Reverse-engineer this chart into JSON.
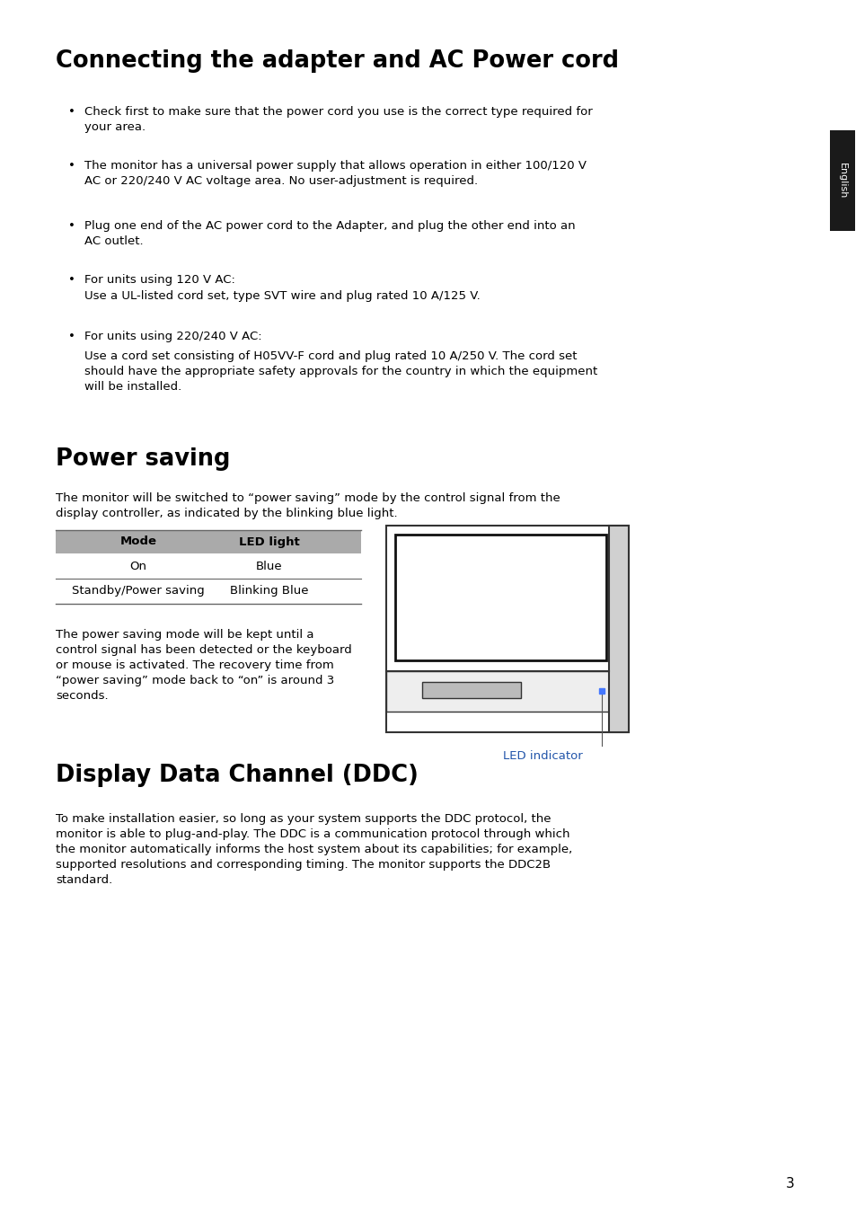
{
  "title1": "Connecting the adapter and AC Power cord",
  "title2": "Power saving",
  "title3": "Display Data Channel (DDC)",
  "bullet1": "Check first to make sure that the power cord you use is the correct type required for\nyour area.",
  "bullet2": "The monitor has a universal power supply that allows operation in either 100/120 V\nAC or 220/240 V AC voltage area. No user-adjustment is required.",
  "bullet3": "Plug one end of the AC power cord to the Adapter, and plug the other end into an\nAC outlet.",
  "bullet4a": "For units using 120 V AC:",
  "bullet4b": "Use a UL-listed cord set, type SVT wire and plug rated 10 A/125 V.",
  "bullet5a": "For units using 220/240 V AC:",
  "bullet5b": "Use a cord set consisting of H05VV-F cord and plug rated 10 A/250 V. The cord set\nshould have the appropriate safety approvals for the country in which the equipment\nwill be installed.",
  "power_saving_intro": "The monitor will be switched to “power saving” mode by the control signal from the\ndisplay controller, as indicated by the blinking blue light.",
  "table_headers": [
    "Mode",
    "LED light"
  ],
  "table_rows": [
    [
      "On",
      "Blue"
    ],
    [
      "Standby/Power saving",
      "Blinking Blue"
    ]
  ],
  "power_saving_body_line1": "The power saving mode will be kept until a",
  "power_saving_body_line2": "control signal has been detected or the keyboard",
  "power_saving_body_line3": "or mouse is activated. The recovery time from",
  "power_saving_body_line4": "“power saving” mode back to “on” is around 3",
  "power_saving_body_line5": "seconds.",
  "led_indicator_label": "LED indicator",
  "ddc_body": "To make installation easier, so long as your system supports the DDC protocol, the\nmonitor is able to plug-and-play. The DDC is a communication protocol through which\nthe monitor automatically informs the host system about its capabilities; for example,\nsupported resolutions and corresponding timing. The monitor supports the DDC2B\nstandard.",
  "page_number": "3",
  "english_label": "English",
  "bg_color": "#ffffff",
  "text_color": "#000000",
  "title_color": "#000000",
  "led_label_color": "#2255aa",
  "table_header_bg": "#aaaaaa",
  "sidebar_color": "#1a1a1a",
  "line_color": "#666666"
}
